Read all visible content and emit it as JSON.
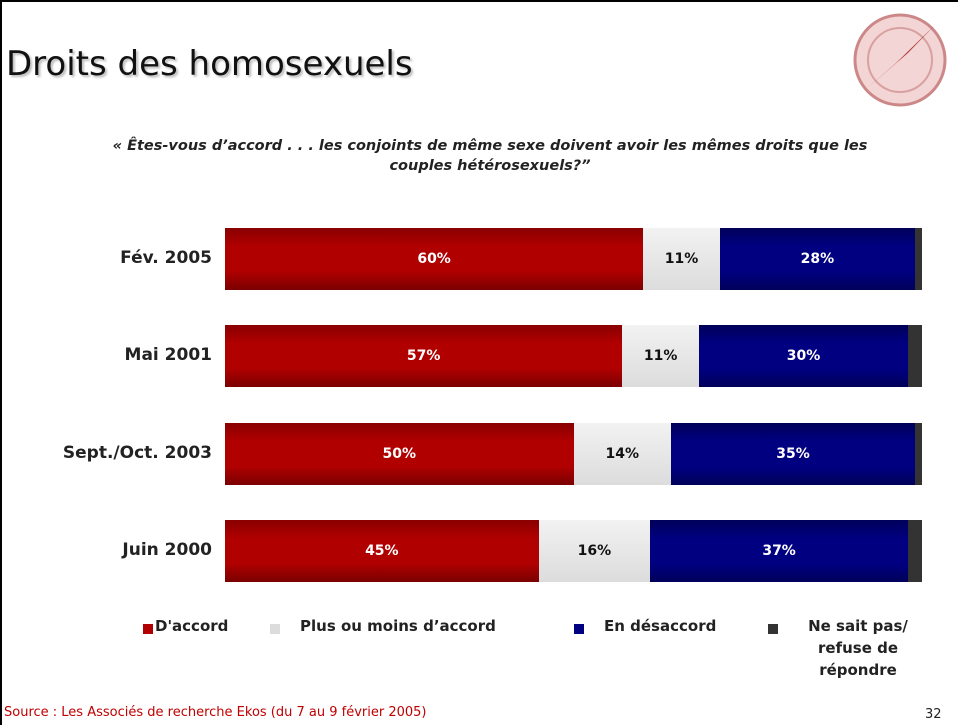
{
  "chart_data": {
    "type": "stacked-bar",
    "title": "Droits des homosexuels",
    "subtitle": "« Êtes-vous d’accord . . . les conjoints de même sexe doivent avoir les mêmes droits que les couples hétérosexuels?”",
    "categories": [
      "Fév. 2005",
      "Mai 2001",
      "Sept./Oct. 2003",
      "Juin 2000"
    ],
    "series": [
      {
        "name": "D'accord",
        "color": "#b00000",
        "values": [
          60,
          57,
          50,
          45
        ],
        "value_labels": [
          "60%",
          "57%",
          "50%",
          "45%"
        ]
      },
      {
        "name": "Plus ou moins d’accord",
        "color": "#dcdcdc",
        "values": [
          11,
          11,
          14,
          16
        ],
        "value_labels": [
          "11%",
          "11%",
          "14%",
          "16%"
        ]
      },
      {
        "name": "En désaccord",
        "color": "#000080",
        "values": [
          28,
          30,
          35,
          37
        ],
        "value_labels": [
          "28%",
          "30%",
          "35%",
          "37%"
        ]
      },
      {
        "name": "Ne sait pas/ refuse de répondre",
        "color": "#333333",
        "values": [
          1,
          2,
          1,
          2
        ]
      }
    ],
    "source": "Source : Les Associés de recherche Ekos (du 7 au 9 février 2005)",
    "page_number": "32"
  }
}
